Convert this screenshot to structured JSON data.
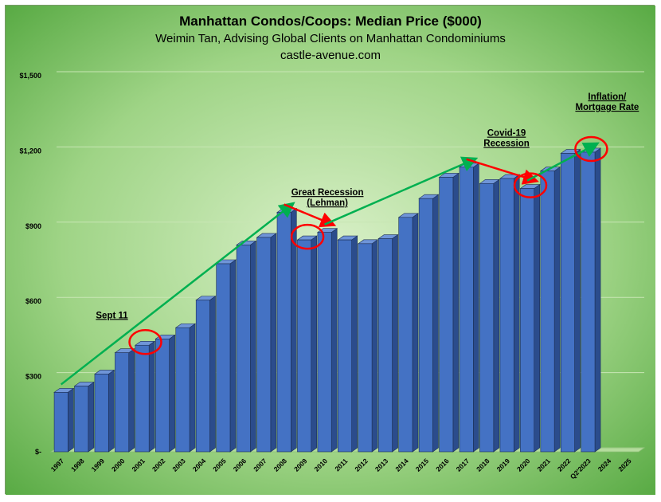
{
  "chart_data": {
    "type": "bar",
    "title": "Manhattan Condos/Coops: Median Price ($000)",
    "subtitle": "Weimin Tan, Advising Global Clients on Manhattan Condominiums",
    "source": "castle-avenue.com",
    "xlabel": "",
    "ylabel": "",
    "ylim": [
      0,
      1500
    ],
    "yticks": [
      0,
      300,
      600,
      900,
      1200,
      1500
    ],
    "ytick_labels": [
      "$-",
      "$300",
      "$600",
      "$900",
      "$1,200",
      "$1,500"
    ],
    "grid": true,
    "categories": [
      "1997",
      "1998",
      "1999",
      "2000",
      "2001",
      "2002",
      "2003",
      "2004",
      "2005",
      "2006",
      "2007",
      "2008",
      "2009",
      "2010",
      "2011",
      "2012",
      "2013",
      "2014",
      "2015",
      "2016",
      "2017",
      "2018",
      "2019",
      "2020",
      "2021",
      "2022",
      "Q2'2023",
      "2024",
      "2025"
    ],
    "values": [
      237,
      262,
      310,
      395,
      425,
      450,
      495,
      605,
      750,
      825,
      855,
      955,
      845,
      875,
      845,
      830,
      850,
      935,
      1010,
      1095,
      1135,
      1070,
      1090,
      1050,
      1120,
      1190,
      1195,
      null,
      null
    ],
    "bar_color": "#4472c4",
    "background_color": "#7fc36a",
    "annotations": [
      {
        "text": "Sept 11",
        "category": "2001",
        "value": 425,
        "marker": "circle"
      },
      {
        "text": "Great Recession\n(Lehman)",
        "category": "2009",
        "value": 845,
        "marker": "circle"
      },
      {
        "text": "Covid-19\nRecession",
        "category": "2020",
        "value": 1050,
        "marker": "circle"
      },
      {
        "text": "Inflation/\nMortgage Rate",
        "category": "Q2'2023",
        "value": 1195,
        "marker": "circle"
      }
    ],
    "trend_arrows": [
      {
        "from": [
          "1997",
          237
        ],
        "to": [
          "2008",
          955
        ],
        "color": "#00b050"
      },
      {
        "from": [
          "2008",
          955
        ],
        "to": [
          "2010",
          875
        ],
        "color": "#ff0000"
      },
      {
        "from": [
          "2010",
          875
        ],
        "to": [
          "2017",
          1135
        ],
        "color": "#00b050"
      },
      {
        "from": [
          "2017",
          1135
        ],
        "to": [
          "2020",
          1050
        ],
        "color": "#ff0000"
      },
      {
        "from": [
          "2020",
          1050
        ],
        "to": [
          "Q2'2023",
          1195
        ],
        "color": "#00b050"
      }
    ],
    "colors": {
      "arrow_up": "#00b050",
      "arrow_down": "#ff0000",
      "highlight": "#ff0000"
    }
  }
}
